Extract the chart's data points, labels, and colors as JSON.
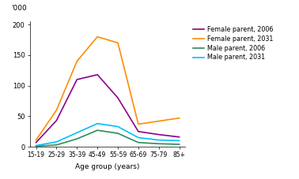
{
  "age_groups": [
    "15-19",
    "25-29",
    "35-39",
    "45-49",
    "55-59",
    "65-69",
    "75-79",
    "85+"
  ],
  "female_2006": [
    7,
    43,
    110,
    118,
    80,
    25,
    20,
    16
  ],
  "female_2031": [
    11,
    60,
    140,
    180,
    170,
    37,
    42,
    47
  ],
  "male_2006": [
    1,
    3,
    13,
    27,
    22,
    7,
    5,
    4
  ],
  "male_2031": [
    2,
    8,
    23,
    38,
    33,
    15,
    11,
    10
  ],
  "colors": {
    "female_2006": "#8B008B",
    "female_2031": "#FF8C00",
    "male_2006": "#2E8B57",
    "male_2031": "#00BFFF"
  },
  "legend_labels": [
    "Female parent, 2006",
    "Female parent, 2031",
    "Male parent, 2006",
    "Male parent, 2031"
  ],
  "ylabel": "'000",
  "xlabel": "Age group (years)",
  "ylim": [
    0,
    205
  ],
  "yticks": [
    0,
    50,
    100,
    150,
    200
  ],
  "linewidth": 1.2
}
